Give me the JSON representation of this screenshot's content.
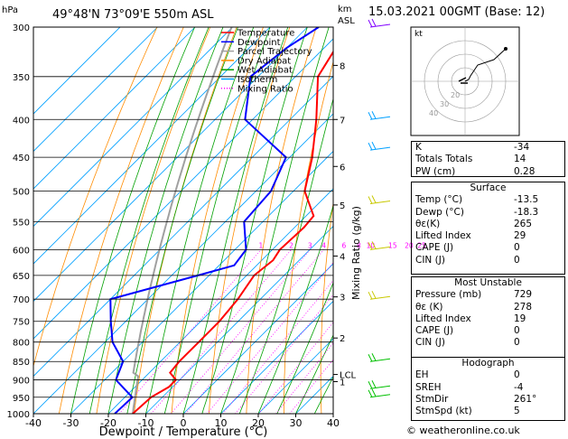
{
  "header": {
    "hpa": "hPa",
    "location": "49°48'N  73°09'E  550m  ASL",
    "km": "km",
    "asl": "ASL",
    "date": "15.03.2021  00GMT  (Base: 12)"
  },
  "legend": [
    {
      "label": "Temperature",
      "color": "#ff0000"
    },
    {
      "label": "Dewpoint",
      "color": "#0000ff"
    },
    {
      "label": "Parcel Trajectory",
      "color": "#a0a0a0"
    },
    {
      "label": "Dry Adiabat",
      "color": "#ff8c00"
    },
    {
      "label": "Wet Adiabat",
      "color": "#00a000"
    },
    {
      "label": "Isotherm",
      "color": "#00a0ff"
    },
    {
      "label": "Mixing Ratio",
      "color": "#ff00ff"
    }
  ],
  "chart_data": {
    "type": "line",
    "xlabel": "Dewpoint / Temperature (°C)",
    "ylabel": "hPa",
    "y2label": "Mixing Ratio (g/kg)",
    "xlim": [
      -40,
      40
    ],
    "ylim": [
      1000,
      300
    ],
    "x_ticks": [
      "-40",
      "-30",
      "-20",
      "-10",
      "0",
      "10",
      "20",
      "30",
      "40"
    ],
    "pressure_ticks": [
      "300",
      "350",
      "400",
      "450",
      "500",
      "550",
      "600",
      "650",
      "700",
      "750",
      "800",
      "850",
      "900",
      "950",
      "1000"
    ],
    "km_ticks": [
      {
        "p": 338,
        "label": "8"
      },
      {
        "p": 400,
        "label": "7"
      },
      {
        "p": 463,
        "label": "6"
      },
      {
        "p": 522,
        "label": "5"
      },
      {
        "p": 612,
        "label": "4"
      },
      {
        "p": 695,
        "label": "3"
      },
      {
        "p": 790,
        "label": "2"
      },
      {
        "p": 885,
        "label": "LCL"
      },
      {
        "p": 905,
        "label": "1"
      }
    ],
    "mixing_ratio_labels": [
      "1",
      "2",
      "3",
      "4",
      "6",
      "8",
      "10",
      "15",
      "20",
      "25"
    ],
    "mixing_ratio_values": [
      1,
      2,
      3,
      4,
      6,
      8,
      10,
      15,
      20,
      25
    ],
    "series": [
      {
        "name": "Temperature",
        "points": [
          [
            300,
            -59
          ],
          [
            350,
            -54
          ],
          [
            400,
            -43
          ],
          [
            450,
            -34
          ],
          [
            500,
            -27
          ],
          [
            540,
            -18
          ],
          [
            560,
            -17.5
          ],
          [
            600,
            -18
          ],
          [
            620,
            -17
          ],
          [
            650,
            -18
          ],
          [
            700,
            -16
          ],
          [
            750,
            -15
          ],
          [
            800,
            -15
          ],
          [
            850,
            -15
          ],
          [
            880,
            -14.5
          ],
          [
            900,
            -11
          ],
          [
            920,
            -11
          ],
          [
            950,
            -13
          ],
          [
            1000,
            -13.5
          ]
        ]
      },
      {
        "name": "Dewpoint",
        "points": [
          [
            300,
            -67
          ],
          [
            320,
            -70
          ],
          [
            350,
            -72
          ],
          [
            400,
            -62
          ],
          [
            450,
            -41
          ],
          [
            500,
            -36
          ],
          [
            550,
            -35
          ],
          [
            600,
            -27
          ],
          [
            630,
            -26
          ],
          [
            650,
            -33
          ],
          [
            700,
            -50
          ],
          [
            750,
            -44
          ],
          [
            800,
            -38
          ],
          [
            850,
            -30
          ],
          [
            900,
            -27
          ],
          [
            950,
            -18
          ],
          [
            1000,
            -18.3
          ]
        ]
      }
    ]
  },
  "hodograph": {
    "label": "kt",
    "rings": [
      "40",
      "30",
      "20"
    ]
  },
  "indices": [
    {
      "label": "K",
      "value": "-34"
    },
    {
      "label": "Totals Totals",
      "value": "14"
    },
    {
      "label": "PW (cm)",
      "value": "0.28"
    }
  ],
  "surface": {
    "title": "Surface",
    "rows": [
      {
        "label": "Temp (°C)",
        "value": "-13.5"
      },
      {
        "label": "Dewp (°C)",
        "value": "-18.3"
      },
      {
        "label": "θε(K)",
        "value": "265"
      },
      {
        "label": "Lifted Index",
        "value": "29"
      },
      {
        "label": "CAPE (J)",
        "value": "0"
      },
      {
        "label": "CIN (J)",
        "value": "0"
      }
    ]
  },
  "most_unstable": {
    "title": "Most Unstable",
    "rows": [
      {
        "label": "Pressure (mb)",
        "value": "729"
      },
      {
        "label": "θε (K)",
        "value": "278"
      },
      {
        "label": "Lifted Index",
        "value": "19"
      },
      {
        "label": "CAPE (J)",
        "value": "0"
      },
      {
        "label": "CIN (J)",
        "value": "0"
      }
    ]
  },
  "hodograph_table": {
    "title": "Hodograph",
    "rows": [
      {
        "label": "EH",
        "value": "0"
      },
      {
        "label": "SREH",
        "value": "-4"
      },
      {
        "label": "StmDir",
        "value": "261°"
      },
      {
        "label": "StmSpd (kt)",
        "value": "5"
      }
    ]
  },
  "credit": "© weatheronline.co.uk"
}
